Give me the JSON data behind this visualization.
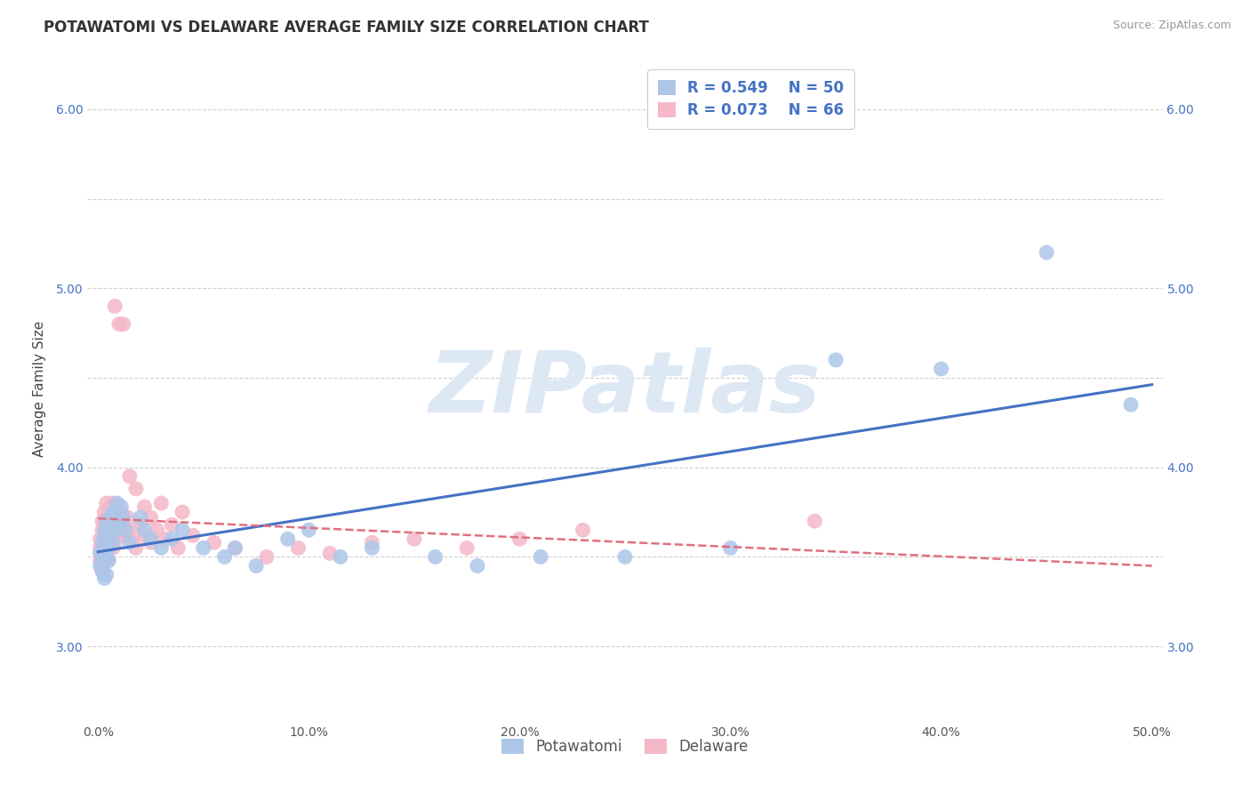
{
  "title": "POTAWATOMI VS DELAWARE AVERAGE FAMILY SIZE CORRELATION CHART",
  "source_text": "Source: ZipAtlas.com",
  "ylabel": "Average Family Size",
  "xlabel_ticks": [
    "0.0%",
    "10.0%",
    "20.0%",
    "30.0%",
    "40.0%",
    "50.0%"
  ],
  "ytick_labels_left": [
    "3.00",
    "",
    "4.00",
    "",
    "5.00",
    "",
    "6.00"
  ],
  "ytick_labels_right": [
    "3.00",
    "",
    "4.00",
    "",
    "5.00",
    "",
    "6.00"
  ],
  "ytick_positions": [
    3.0,
    3.5,
    4.0,
    4.5,
    5.0,
    5.5,
    6.0
  ],
  "xlim": [
    -0.005,
    0.505
  ],
  "ylim": [
    2.58,
    6.3
  ],
  "R_potawatomi": 0.549,
  "N_potawatomi": 50,
  "R_delaware": 0.073,
  "N_delaware": 66,
  "color_potawatomi": "#adc6e8",
  "color_delaware": "#f5b8c8",
  "line_color_potawatomi": "#4472c4",
  "line_color_delaware": "#e07080",
  "watermark_text": "ZIPatlas",
  "watermark_color": "#dde8f5",
  "title_fontsize": 12,
  "axis_label_fontsize": 11,
  "tick_fontsize": 10,
  "legend_fontsize": 12,
  "legend_labels": [
    "Potawatomi",
    "Delaware"
  ],
  "potawatomi_x": [
    0.001,
    0.001,
    0.002,
    0.002,
    0.002,
    0.003,
    0.003,
    0.003,
    0.003,
    0.004,
    0.004,
    0.004,
    0.005,
    0.005,
    0.005,
    0.006,
    0.006,
    0.007,
    0.007,
    0.008,
    0.008,
    0.009,
    0.01,
    0.011,
    0.012,
    0.013,
    0.015,
    0.02,
    0.022,
    0.025,
    0.03,
    0.035,
    0.04,
    0.05,
    0.06,
    0.065,
    0.075,
    0.09,
    0.1,
    0.115,
    0.13,
    0.16,
    0.18,
    0.21,
    0.25,
    0.3,
    0.35,
    0.4,
    0.45,
    0.49
  ],
  "potawatomi_y": [
    3.52,
    3.45,
    3.58,
    3.42,
    3.48,
    3.6,
    3.55,
    3.38,
    3.65,
    3.5,
    3.7,
    3.4,
    3.62,
    3.55,
    3.48,
    3.68,
    3.72,
    3.75,
    3.58,
    3.65,
    3.72,
    3.8,
    3.68,
    3.78,
    3.72,
    3.65,
    3.58,
    3.72,
    3.65,
    3.6,
    3.55,
    3.6,
    3.65,
    3.55,
    3.5,
    3.55,
    3.45,
    3.6,
    3.65,
    3.5,
    3.55,
    3.5,
    3.45,
    3.5,
    3.5,
    3.55,
    4.6,
    4.55,
    5.2,
    4.35
  ],
  "delaware_x": [
    0.001,
    0.001,
    0.001,
    0.002,
    0.002,
    0.002,
    0.002,
    0.003,
    0.003,
    0.003,
    0.003,
    0.004,
    0.004,
    0.004,
    0.004,
    0.005,
    0.005,
    0.005,
    0.006,
    0.006,
    0.006,
    0.007,
    0.007,
    0.007,
    0.008,
    0.008,
    0.008,
    0.009,
    0.009,
    0.01,
    0.01,
    0.011,
    0.012,
    0.013,
    0.014,
    0.015,
    0.016,
    0.018,
    0.02,
    0.022,
    0.025,
    0.028,
    0.032,
    0.038,
    0.045,
    0.055,
    0.065,
    0.08,
    0.095,
    0.11,
    0.13,
    0.15,
    0.175,
    0.2,
    0.23,
    0.34,
    0.008,
    0.01,
    0.012,
    0.015,
    0.018,
    0.022,
    0.025,
    0.03,
    0.035,
    0.04
  ],
  "delaware_y": [
    3.55,
    3.48,
    3.6,
    3.65,
    3.55,
    3.42,
    3.7,
    3.6,
    3.75,
    3.52,
    3.68,
    3.72,
    3.58,
    3.8,
    3.65,
    3.55,
    3.48,
    3.62,
    3.7,
    3.6,
    3.78,
    3.65,
    3.55,
    3.8,
    3.72,
    3.62,
    3.58,
    3.68,
    3.75,
    3.62,
    3.7,
    3.75,
    3.68,
    3.62,
    3.72,
    3.65,
    3.6,
    3.55,
    3.68,
    3.62,
    3.58,
    3.65,
    3.6,
    3.55,
    3.62,
    3.58,
    3.55,
    3.5,
    3.55,
    3.52,
    3.58,
    3.6,
    3.55,
    3.6,
    3.65,
    3.7,
    4.9,
    4.8,
    4.8,
    3.95,
    3.88,
    3.78,
    3.72,
    3.8,
    3.68,
    3.75
  ]
}
